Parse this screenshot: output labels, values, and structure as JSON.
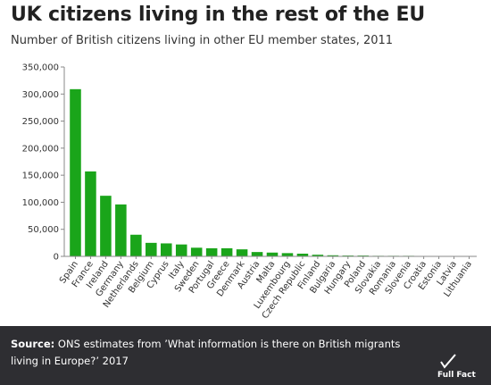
{
  "header": {
    "title": "UK citizens living in the rest of the EU",
    "subtitle": "Number of British citizens living in other EU member states, 2011"
  },
  "footer": {
    "source_label": "Source:",
    "source_text": "ONS estimates from ’What information is there on British migrants living in Europe?’ 2017",
    "logo_text": "Full Fact"
  },
  "colors": {
    "bar": "#1aa51a",
    "footer_bg": "#2e2e32",
    "axis": "#888888"
  },
  "chart_data": {
    "type": "bar",
    "title": "UK citizens living in the rest of the EU",
    "subtitle": "Number of British citizens living in other EU member states, 2011",
    "xlabel": "",
    "ylabel": "",
    "ylim": [
      0,
      350000
    ],
    "yticks": [
      0,
      50000,
      100000,
      150000,
      200000,
      250000,
      300000,
      350000
    ],
    "ytick_labels": [
      "0",
      "50,000",
      "100,000",
      "150,000",
      "200,000",
      "250,000",
      "300,000",
      "350,000"
    ],
    "grid": false,
    "legend": "none",
    "categories": [
      "Spain",
      "France",
      "Ireland",
      "Germany",
      "Netherlands",
      "Belgium",
      "Cyprus",
      "Italy",
      "Sweden",
      "Portugal",
      "Greece",
      "Denmark",
      "Austria",
      "Malta",
      "Luxembourg",
      "Czech Republic",
      "Finland",
      "Bulgaria",
      "Hungary",
      "Poland",
      "Slovakia",
      "Romania",
      "Slovenia",
      "Croatia",
      "Estonia",
      "Latvia",
      "Lithuania"
    ],
    "values": [
      309000,
      157000,
      112000,
      96000,
      40000,
      25000,
      24000,
      22000,
      16000,
      15000,
      15000,
      13000,
      8000,
      7000,
      6000,
      5000,
      3000,
      2000,
      1500,
      1500,
      1000,
      1000,
      1000,
      800,
      500,
      500,
      500
    ]
  }
}
